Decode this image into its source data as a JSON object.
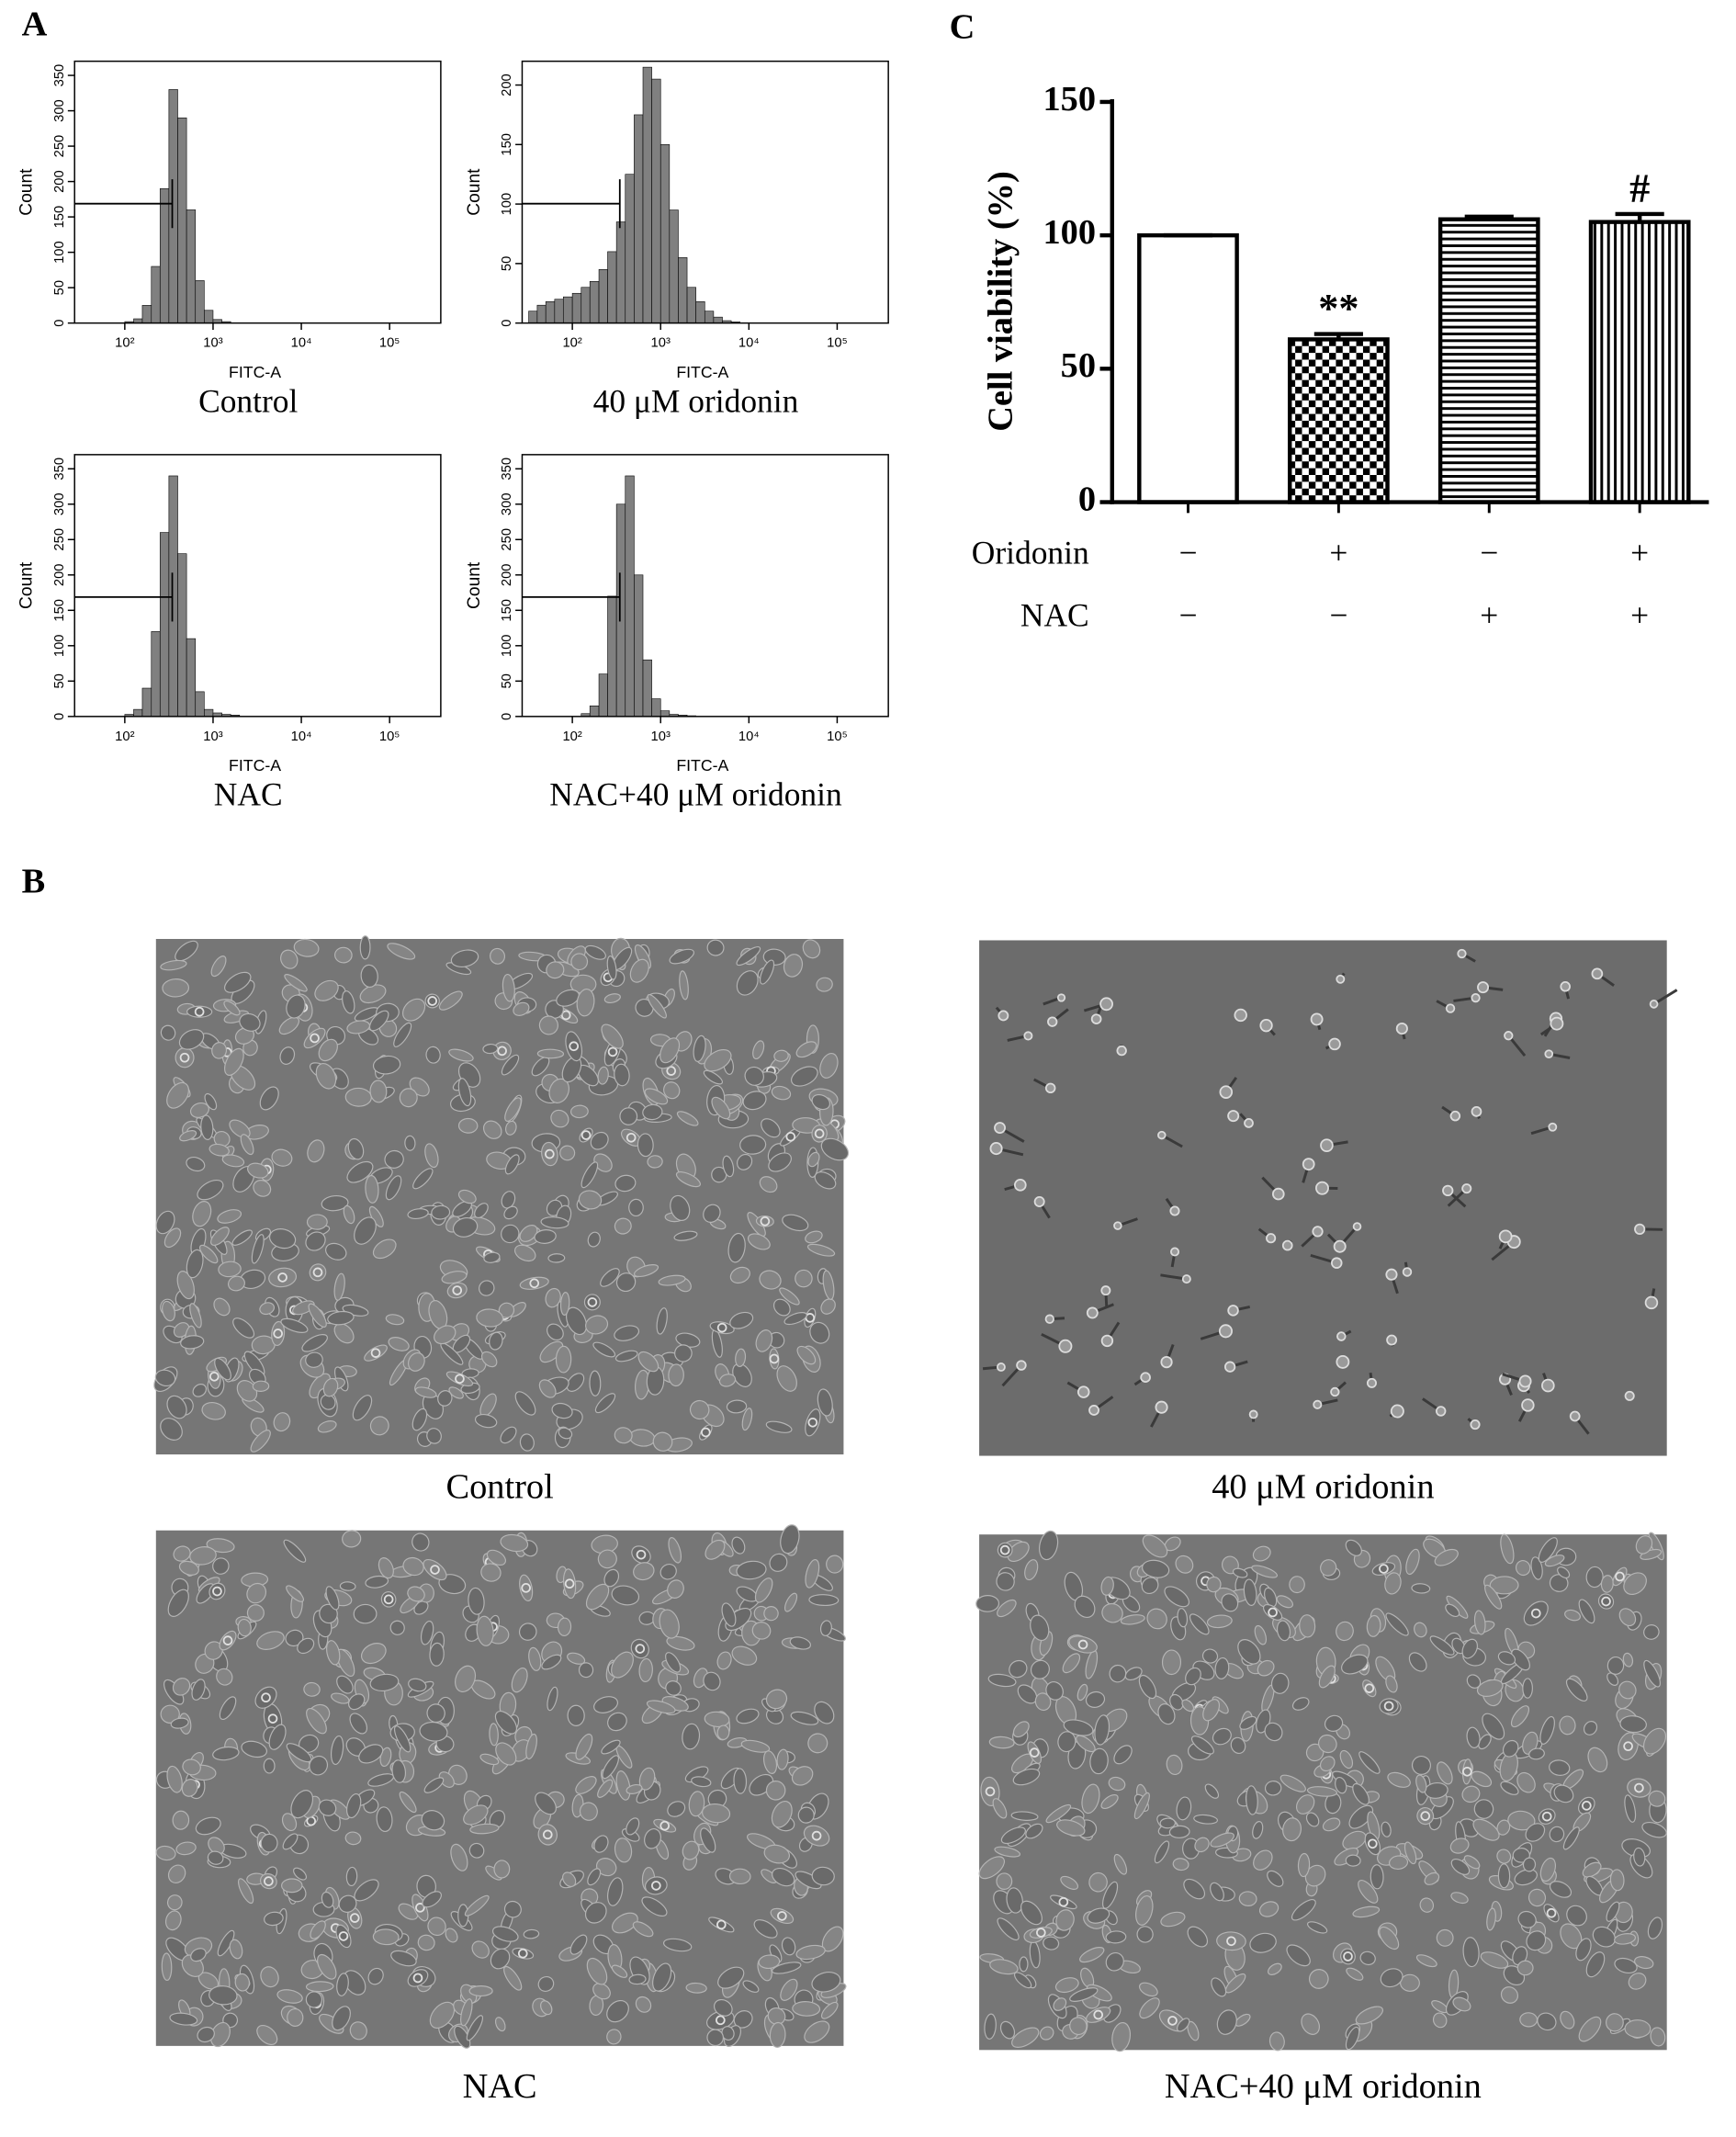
{
  "chart_data": [
    {
      "type": "histogram",
      "title": "Control",
      "x_label": "FITC-A",
      "y_label": "Count",
      "log_x": true,
      "color": "#808080",
      "bins": [
        32,
        40,
        50,
        63,
        79,
        100,
        126,
        158,
        200,
        251,
        316,
        398,
        501,
        631,
        794,
        1000,
        1259,
        1585,
        1995,
        2512,
        3162,
        3981,
        5012,
        6310,
        7943,
        10000
      ],
      "values": [
        0,
        0,
        0,
        0,
        0,
        2,
        6,
        25,
        80,
        190,
        330,
        290,
        160,
        60,
        18,
        5,
        2,
        0,
        0,
        0,
        0,
        0,
        0,
        0,
        0
      ],
      "xlim": [
        27,
        380000
      ],
      "xticks": [
        {
          "value": 100,
          "label": "10²"
        },
        {
          "value": 1000,
          "label": "10³"
        },
        {
          "value": 10000,
          "label": "10⁴"
        },
        {
          "value": 100000,
          "label": "10⁵"
        }
      ],
      "ylim": [
        0,
        370
      ],
      "yticks": [
        0,
        50,
        100,
        150,
        200,
        250,
        300,
        350
      ]
    },
    {
      "type": "histogram",
      "title": "40 μM oridonin",
      "x_label": "FITC-A",
      "y_label": "Count",
      "log_x": true,
      "color": "#808080",
      "bins": [
        32,
        40,
        50,
        63,
        79,
        100,
        126,
        158,
        200,
        251,
        316,
        398,
        501,
        631,
        794,
        1000,
        1259,
        1585,
        1995,
        2512,
        3162,
        3981,
        5012,
        6310,
        7943,
        10000
      ],
      "values": [
        10,
        15,
        18,
        20,
        22,
        25,
        30,
        35,
        45,
        60,
        85,
        125,
        175,
        215,
        205,
        150,
        95,
        55,
        30,
        18,
        10,
        5,
        2,
        1,
        0
      ],
      "xlim": [
        27,
        380000
      ],
      "xticks": [
        {
          "value": 100,
          "label": "10²"
        },
        {
          "value": 1000,
          "label": "10³"
        },
        {
          "value": 10000,
          "label": "10⁴"
        },
        {
          "value": 100000,
          "label": "10⁵"
        }
      ],
      "ylim": [
        0,
        220
      ],
      "yticks": [
        0,
        50,
        100,
        150,
        200
      ]
    },
    {
      "type": "histogram",
      "title": "NAC",
      "x_label": "FITC-A",
      "y_label": "Count",
      "log_x": true,
      "color": "#808080",
      "bins": [
        32,
        40,
        50,
        63,
        79,
        100,
        126,
        158,
        200,
        251,
        316,
        398,
        501,
        631,
        794,
        1000,
        1259,
        1585,
        1995,
        2512,
        3162,
        3981,
        5012,
        6310,
        7943,
        10000
      ],
      "values": [
        0,
        0,
        0,
        0,
        0,
        3,
        10,
        40,
        120,
        260,
        340,
        230,
        110,
        35,
        10,
        5,
        3,
        2,
        0,
        0,
        0,
        0,
        0,
        0,
        0
      ],
      "xlim": [
        27,
        380000
      ],
      "xticks": [
        {
          "value": 100,
          "label": "10²"
        },
        {
          "value": 1000,
          "label": "10³"
        },
        {
          "value": 10000,
          "label": "10⁴"
        },
        {
          "value": 100000,
          "label": "10⁵"
        }
      ],
      "ylim": [
        0,
        370
      ],
      "yticks": [
        0,
        50,
        100,
        150,
        200,
        250,
        300,
        350
      ]
    },
    {
      "type": "histogram",
      "title": "NAC+40 μM oridonin",
      "x_label": "FITC-A",
      "y_label": "Count",
      "log_x": true,
      "color": "#808080",
      "bins": [
        32,
        40,
        50,
        63,
        79,
        100,
        126,
        158,
        200,
        251,
        316,
        398,
        501,
        631,
        794,
        1000,
        1259,
        1585,
        1995,
        2512,
        3162,
        3981,
        5012,
        6310,
        7943,
        10000
      ],
      "values": [
        0,
        0,
        0,
        0,
        0,
        0,
        4,
        15,
        60,
        170,
        300,
        340,
        200,
        80,
        25,
        8,
        3,
        2,
        1,
        0,
        0,
        0,
        0,
        0,
        0
      ],
      "xlim": [
        27,
        380000
      ],
      "xticks": [
        {
          "value": 100,
          "label": "10²"
        },
        {
          "value": 1000,
          "label": "10³"
        },
        {
          "value": 10000,
          "label": "10⁴"
        },
        {
          "value": 100000,
          "label": "10⁵"
        }
      ],
      "ylim": [
        0,
        370
      ],
      "yticks": [
        0,
        50,
        100,
        150,
        200,
        250,
        300,
        350
      ]
    },
    {
      "type": "bar",
      "y_label": "Cell viability (%)",
      "values": [
        100,
        61,
        106,
        105
      ],
      "errors": [
        0,
        2,
        1,
        3
      ],
      "annotations": [
        null,
        "**",
        null,
        "#"
      ],
      "color": "#000000",
      "fill_patterns": [
        "solid-white",
        "checkerboard",
        "horizontal-lines",
        "vertical-lines"
      ],
      "ylim": [
        0,
        150
      ],
      "yticks": [
        0,
        50,
        100,
        150
      ],
      "treatments": [
        {
          "label": "Oridonin",
          "values": [
            "−",
            "+",
            "−",
            "+"
          ]
        },
        {
          "label": "NAC",
          "values": [
            "−",
            "−",
            "+",
            "+"
          ]
        }
      ]
    }
  ],
  "panel_labels": [
    "A",
    "B",
    "C"
  ],
  "micrographs": [
    {
      "caption": "Control"
    },
    {
      "caption": "40 μM oridonin"
    },
    {
      "caption": "NAC"
    },
    {
      "caption": "NAC+40 μM oridonin"
    }
  ]
}
